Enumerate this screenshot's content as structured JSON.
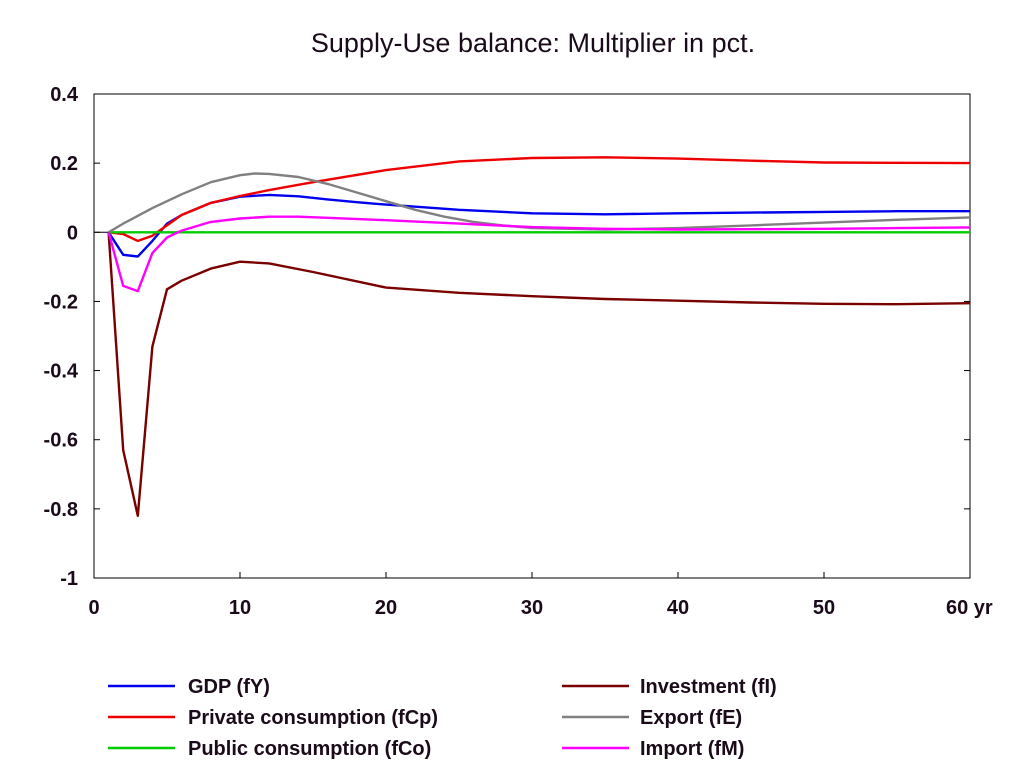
{
  "chart_data": {
    "type": "line",
    "title": "Supply-Use balance: Multiplier in pct.",
    "xlabel": "",
    "ylabel": "",
    "xlim": [
      0,
      60
    ],
    "ylim": [
      -1,
      0.4
    ],
    "x_ticks": [
      {
        "value": 0,
        "label": "0"
      },
      {
        "value": 10,
        "label": "10"
      },
      {
        "value": 20,
        "label": "20"
      },
      {
        "value": 30,
        "label": "30"
      },
      {
        "value": 40,
        "label": "40"
      },
      {
        "value": 50,
        "label": "50"
      },
      {
        "value": 60,
        "label": "60 yr"
      }
    ],
    "y_ticks": [
      {
        "value": 0.4,
        "label": "0.4"
      },
      {
        "value": 0.2,
        "label": "0.2"
      },
      {
        "value": 0,
        "label": "0"
      },
      {
        "value": -0.2,
        "label": "-0.2"
      },
      {
        "value": -0.4,
        "label": "-0.4"
      },
      {
        "value": -0.6,
        "label": "-0.6"
      },
      {
        "value": -0.8,
        "label": "-0.8"
      },
      {
        "value": -1,
        "label": "-1"
      }
    ],
    "grid": false,
    "legend_position": "bottom",
    "series": [
      {
        "name": "GDP (fY)",
        "color": "#0000ee",
        "x": [
          1,
          2,
          3,
          4,
          5,
          6,
          8,
          10,
          12,
          14,
          16,
          18,
          20,
          25,
          30,
          35,
          40,
          45,
          50,
          55,
          60
        ],
        "values": [
          0,
          -0.065,
          -0.07,
          -0.025,
          0.025,
          0.05,
          0.085,
          0.103,
          0.108,
          0.104,
          0.095,
          0.087,
          0.08,
          0.065,
          0.055,
          0.052,
          0.055,
          0.057,
          0.059,
          0.061,
          0.061
        ]
      },
      {
        "name": "Private consumption (fCp)",
        "color": "#ee0000",
        "x": [
          1,
          2,
          3,
          4,
          5,
          6,
          8,
          10,
          12,
          15,
          20,
          25,
          30,
          35,
          40,
          45,
          50,
          55,
          60
        ],
        "values": [
          0,
          -0.005,
          -0.025,
          -0.01,
          0.02,
          0.05,
          0.085,
          0.105,
          0.122,
          0.145,
          0.18,
          0.205,
          0.215,
          0.217,
          0.213,
          0.207,
          0.202,
          0.201,
          0.2
        ]
      },
      {
        "name": "Public consumption (fCo)",
        "color": "#00cc00",
        "x": [
          1,
          60
        ],
        "values": [
          0,
          0
        ]
      },
      {
        "name": "Investment (fI)",
        "color": "#7a0000",
        "x": [
          1,
          2,
          3,
          4,
          5,
          6,
          8,
          10,
          12,
          15,
          20,
          25,
          30,
          35,
          40,
          45,
          50,
          55,
          60
        ],
        "values": [
          0,
          -0.63,
          -0.82,
          -0.33,
          -0.165,
          -0.14,
          -0.105,
          -0.085,
          -0.09,
          -0.115,
          -0.16,
          -0.175,
          -0.185,
          -0.193,
          -0.198,
          -0.203,
          -0.207,
          -0.208,
          -0.205
        ]
      },
      {
        "name": "Export (fE)",
        "color": "#808080",
        "x": [
          1,
          2,
          4,
          6,
          8,
          10,
          11,
          12,
          14,
          16,
          18,
          20,
          22,
          24,
          26,
          28,
          30,
          35,
          40,
          45,
          50,
          55,
          60
        ],
        "values": [
          0,
          0.025,
          0.07,
          0.11,
          0.145,
          0.165,
          0.17,
          0.169,
          0.16,
          0.14,
          0.115,
          0.09,
          0.065,
          0.045,
          0.03,
          0.02,
          0.012,
          0.008,
          0.012,
          0.02,
          0.028,
          0.036,
          0.043
        ]
      },
      {
        "name": "Import (fM)",
        "color": "#ff00ff",
        "x": [
          1,
          2,
          3,
          4,
          5,
          6,
          8,
          10,
          12,
          14,
          16,
          20,
          25,
          30,
          35,
          40,
          45,
          50,
          55,
          60
        ],
        "values": [
          0,
          -0.155,
          -0.17,
          -0.06,
          -0.015,
          0.005,
          0.03,
          0.04,
          0.045,
          0.045,
          0.042,
          0.035,
          0.025,
          0.015,
          0.01,
          0.008,
          0.009,
          0.01,
          0.012,
          0.014
        ]
      }
    ]
  }
}
